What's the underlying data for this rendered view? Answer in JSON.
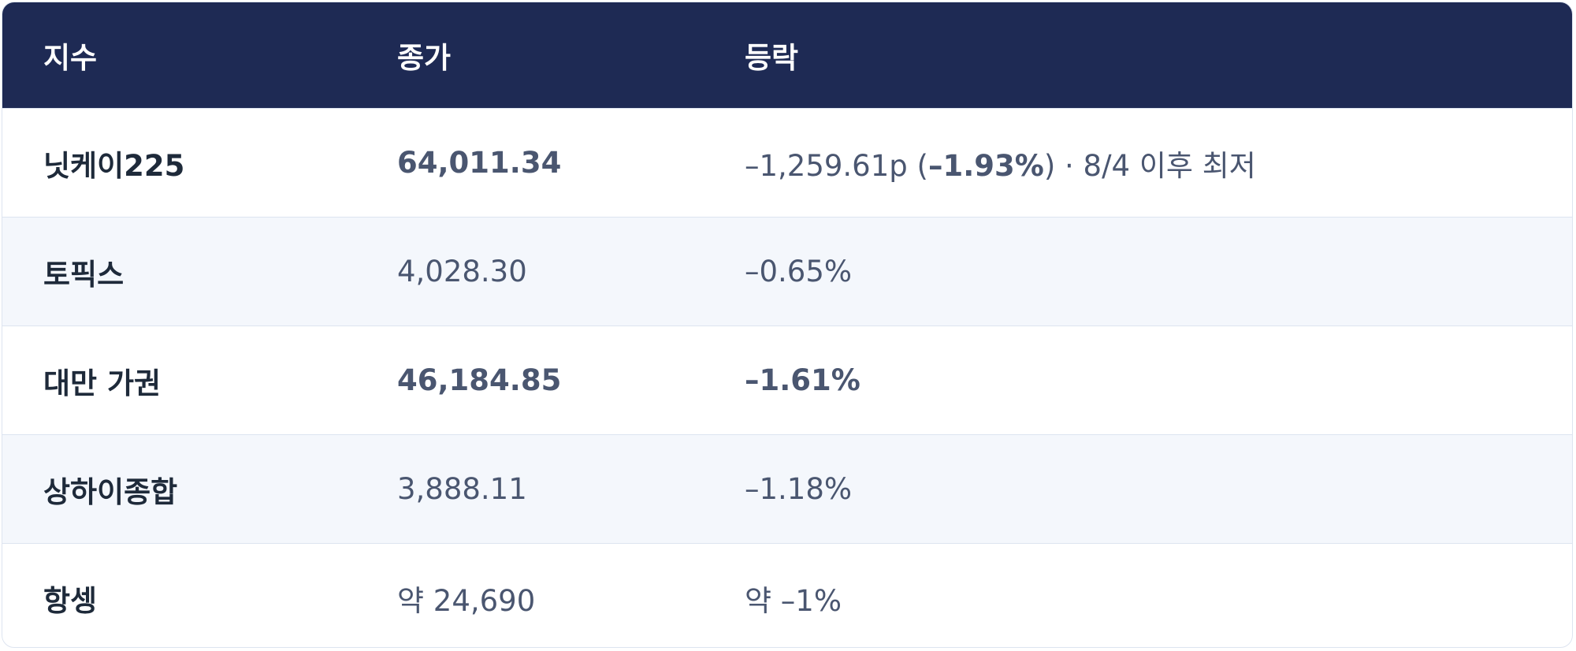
{
  "table": {
    "header": [
      "지수",
      "종가",
      "등락"
    ],
    "rows": [
      {
        "name": "닛케이225",
        "close": {
          "text": "64,011.34",
          "bold": true
        },
        "change": [
          {
            "text": "–1,259.61p (",
            "bold": false
          },
          {
            "text": "–1.93%",
            "bold": true
          },
          {
            "text": ") · 8/4 이후 최저",
            "bold": false
          }
        ]
      },
      {
        "name": "토픽스",
        "close": {
          "text": "4,028.30",
          "bold": false
        },
        "change": [
          {
            "text": "–0.65%",
            "bold": false
          }
        ]
      },
      {
        "name": "대만 가권",
        "close": {
          "text": "46,184.85",
          "bold": true
        },
        "change": [
          {
            "text": "–1.61%",
            "bold": true
          }
        ]
      },
      {
        "name": "상하이종합",
        "close": {
          "text": "3,888.11",
          "bold": false
        },
        "change": [
          {
            "text": "–1.18%",
            "bold": false
          }
        ]
      },
      {
        "name": "항셍",
        "close": {
          "text": "약 24,690",
          "bold": false
        },
        "change": [
          {
            "text": "약 –1%",
            "bold": false
          }
        ]
      }
    ]
  }
}
